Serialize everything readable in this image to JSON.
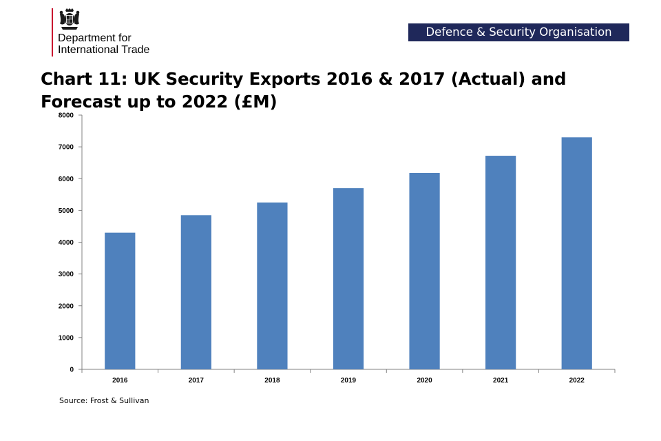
{
  "header": {
    "department_line1": "Department for",
    "department_line2": "International Trade",
    "badge_label": "Defence & Security Organisation"
  },
  "colors": {
    "bar": "#4f81bd",
    "badge_background": "#1f285a",
    "department_rule": "#c8102e",
    "axis": "#808080"
  },
  "footer": {
    "source": "Source: Frost & Sullivan"
  },
  "chart_data": {
    "type": "bar",
    "title": "Chart 11: UK Security Exports 2016 & 2017 (Actual) and Forecast up to 2022 (£M)",
    "xlabel": "",
    "ylabel": "",
    "categories": [
      "2016",
      "2017",
      "2018",
      "2019",
      "2020",
      "2021",
      "2022"
    ],
    "values": [
      4300,
      4850,
      5250,
      5700,
      6180,
      6720,
      7300
    ],
    "ylim": [
      0,
      8000
    ],
    "yticks": [
      0,
      1000,
      2000,
      3000,
      4000,
      5000,
      6000,
      7000,
      8000
    ],
    "grid": false,
    "legend": "none"
  }
}
